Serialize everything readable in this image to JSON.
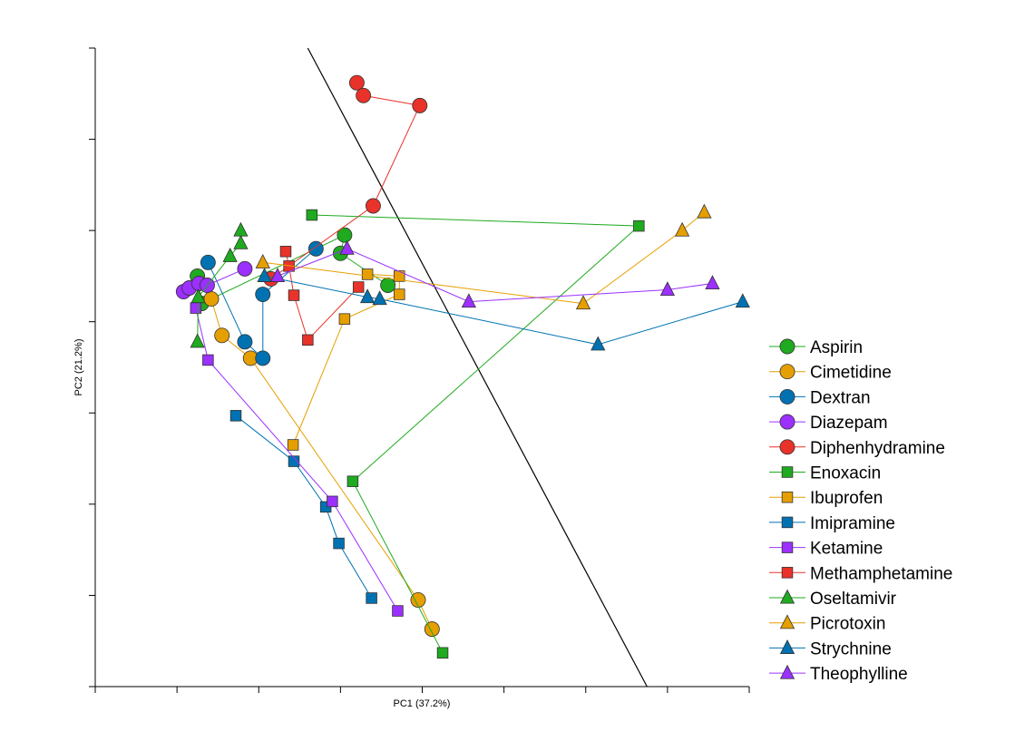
{
  "chart_data": {
    "type": "scatter",
    "title": "",
    "xlabel": "PC1 (37.2%)",
    "ylabel": "PC2 (21.2%)",
    "xlim": [
      0,
      8
    ],
    "ylim": [
      0,
      7
    ],
    "x_ticks": [
      0,
      1,
      2,
      3,
      4,
      5,
      6,
      7,
      8
    ],
    "y_ticks": [
      0,
      1,
      2,
      3,
      4,
      5,
      6,
      7
    ],
    "tick_labels_shown": false,
    "grid": false,
    "legend_position": "right",
    "separator_line": [
      [
        2.6,
        7.0
      ],
      [
        6.75,
        0.0
      ]
    ],
    "series": [
      {
        "name": "Aspirin",
        "color": "#1faa1f",
        "marker": "circle",
        "points": [
          [
            1.25,
            4.5
          ],
          [
            1.3,
            4.2
          ],
          [
            3.05,
            4.95
          ],
          [
            3.0,
            4.75
          ],
          [
            3.58,
            4.4
          ]
        ]
      },
      {
        "name": "Cimetidine",
        "color": "#e69f00",
        "marker": "circle",
        "points": [
          [
            1.42,
            4.25
          ],
          [
            1.55,
            3.85
          ],
          [
            1.9,
            3.6
          ],
          [
            3.95,
            0.95
          ],
          [
            4.12,
            0.63
          ]
        ]
      },
      {
        "name": "Dextran",
        "color": "#0072b2",
        "marker": "circle",
        "points": [
          [
            1.38,
            4.65
          ],
          [
            1.83,
            3.78
          ],
          [
            2.05,
            3.6
          ],
          [
            2.05,
            4.3
          ],
          [
            2.7,
            4.8
          ]
        ]
      },
      {
        "name": "Diazepam",
        "color": "#9b30ff",
        "marker": "circle",
        "points": [
          [
            1.08,
            4.33
          ],
          [
            1.15,
            4.37
          ],
          [
            1.27,
            4.42
          ],
          [
            1.37,
            4.4
          ],
          [
            1.83,
            4.58
          ]
        ]
      },
      {
        "name": "Diphenhydramine",
        "color": "#e8322a",
        "marker": "circle",
        "points": [
          [
            3.2,
            6.62
          ],
          [
            3.28,
            6.48
          ],
          [
            3.97,
            6.37
          ],
          [
            3.4,
            5.27
          ],
          [
            2.15,
            4.47
          ]
        ]
      },
      {
        "name": "Enoxacin",
        "color": "#1faa1f",
        "marker": "square",
        "points": [
          [
            2.65,
            5.17
          ],
          [
            6.65,
            5.05
          ],
          [
            3.15,
            2.25
          ],
          [
            4.25,
            0.37
          ]
        ]
      },
      {
        "name": "Ibuprofen",
        "color": "#e69f00",
        "marker": "square",
        "points": [
          [
            3.33,
            4.52
          ],
          [
            3.72,
            4.5
          ],
          [
            3.72,
            4.3
          ],
          [
            3.05,
            4.03
          ],
          [
            2.42,
            2.65
          ]
        ]
      },
      {
        "name": "Imipramine",
        "color": "#0072b2",
        "marker": "square",
        "points": [
          [
            1.72,
            2.97
          ],
          [
            2.43,
            2.47
          ],
          [
            2.82,
            1.97
          ],
          [
            2.98,
            1.57
          ],
          [
            3.38,
            0.97
          ]
        ]
      },
      {
        "name": "Ketamine",
        "color": "#9b30ff",
        "marker": "square",
        "points": [
          [
            1.23,
            4.15
          ],
          [
            1.38,
            3.58
          ],
          [
            2.9,
            2.03
          ],
          [
            3.7,
            0.83
          ]
        ]
      },
      {
        "name": "Methamphetamine",
        "color": "#e8322a",
        "marker": "square",
        "points": [
          [
            2.33,
            4.77
          ],
          [
            2.37,
            4.61
          ],
          [
            2.43,
            4.29
          ],
          [
            2.6,
            3.8
          ],
          [
            3.22,
            4.38
          ]
        ]
      },
      {
        "name": "Oseltamivir",
        "color": "#1faa1f",
        "marker": "triangle",
        "points": [
          [
            1.25,
            3.78
          ],
          [
            1.26,
            4.27
          ],
          [
            1.65,
            4.72
          ],
          [
            1.78,
            4.86
          ],
          [
            1.78,
            5.0
          ]
        ]
      },
      {
        "name": "Picrotoxin",
        "color": "#e69f00",
        "marker": "triangle",
        "points": [
          [
            2.05,
            4.65
          ],
          [
            5.97,
            4.2
          ],
          [
            7.18,
            5.0
          ],
          [
            7.45,
            5.2
          ]
        ]
      },
      {
        "name": "Strychnine",
        "color": "#0072b2",
        "marker": "triangle",
        "points": [
          [
            2.07,
            4.5
          ],
          [
            3.33,
            4.27
          ],
          [
            3.48,
            4.25
          ],
          [
            6.15,
            3.75
          ],
          [
            7.92,
            4.22
          ]
        ]
      },
      {
        "name": "Theophylline",
        "color": "#9b30ff",
        "marker": "triangle",
        "points": [
          [
            2.23,
            4.5
          ],
          [
            3.08,
            4.8
          ],
          [
            4.57,
            4.22
          ],
          [
            7.0,
            4.35
          ],
          [
            7.55,
            4.42
          ]
        ]
      }
    ]
  }
}
